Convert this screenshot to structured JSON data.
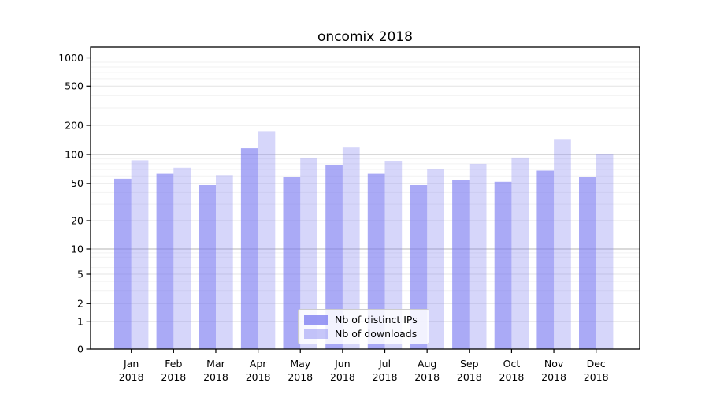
{
  "chart_data": {
    "type": "bar",
    "title": "oncomix 2018",
    "categories": [
      "Jan",
      "Feb",
      "Mar",
      "Apr",
      "May",
      "Jun",
      "Jul",
      "Aug",
      "Sep",
      "Oct",
      "Nov",
      "Dec"
    ],
    "year": "2018",
    "series": [
      {
        "name": "Nb of distinct IPs",
        "color": "#7878f0",
        "alpha": 0.63,
        "values": [
          56,
          63,
          48,
          116,
          58,
          78,
          63,
          48,
          54,
          52,
          68,
          58
        ]
      },
      {
        "name": "Nb of downloads",
        "color": "#7878f0",
        "alpha": 0.3,
        "values": [
          87,
          73,
          61,
          174,
          92,
          118,
          86,
          71,
          80,
          93,
          142,
          100
        ]
      }
    ],
    "yscale": "symlog",
    "yticks": [
      0,
      1,
      2,
      5,
      10,
      20,
      50,
      100,
      200,
      500,
      1000
    ],
    "minor_yticks": [
      3,
      4,
      6,
      7,
      8,
      9,
      30,
      40,
      60,
      70,
      80,
      90,
      300,
      400,
      600,
      700,
      800,
      900
    ],
    "ylim": [
      0,
      1270
    ],
    "grid": true,
    "legend_position": "lower-center"
  },
  "colors": {
    "major_grid": "#b3b3b3",
    "light_grid": "#e4e4e4",
    "minor_grid": "#f2f2f2",
    "axis": "#000000",
    "background": "#ffffff"
  }
}
